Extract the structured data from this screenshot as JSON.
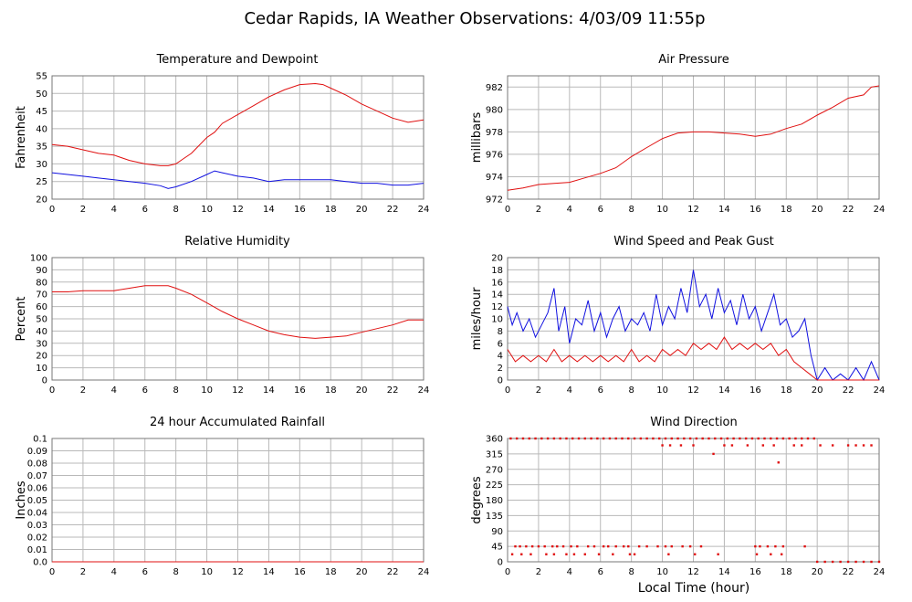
{
  "title": "Cedar Rapids, IA Weather Observations: 4/03/09 11:55p",
  "x_axis_label": "Local Time (hour)",
  "x_ticks": [
    "0",
    "2",
    "4",
    "6",
    "8",
    "10",
    "12",
    "14",
    "16",
    "18",
    "20",
    "22",
    "24"
  ],
  "colors": {
    "red": "#e01010",
    "blue": "#1010e0",
    "grid": "#b9b9b9"
  },
  "chart_data": [
    {
      "type": "line",
      "title": "Temperature and Dewpoint",
      "ylabel": "Fahrenheit",
      "xlim": [
        0,
        24
      ],
      "ylim": [
        20,
        55
      ],
      "yticks": [
        "20",
        "25",
        "30",
        "35",
        "40",
        "45",
        "50",
        "55"
      ],
      "grid": true,
      "series": [
        {
          "color": "#e01010",
          "x": [
            0,
            1,
            2,
            3,
            4,
            5,
            6,
            7,
            7.5,
            8,
            8.5,
            9,
            10,
            10.5,
            11,
            12,
            13,
            14,
            15,
            16,
            17,
            17.5,
            18,
            19,
            20,
            21,
            22,
            23,
            24
          ],
          "y": [
            35.5,
            35,
            34,
            33,
            32.5,
            31,
            30,
            29.5,
            29.5,
            30,
            31.5,
            33,
            37.5,
            39,
            41.5,
            44,
            46.5,
            49,
            51,
            52.5,
            52.8,
            52.5,
            51.5,
            49.5,
            47,
            45,
            43,
            41.8,
            42.5
          ]
        },
        {
          "color": "#1010e0",
          "x": [
            0,
            1,
            2,
            3,
            4,
            5,
            6,
            7,
            7.5,
            8,
            9,
            10,
            10.5,
            11,
            12,
            13,
            14,
            15,
            16,
            17,
            18,
            19,
            20,
            21,
            22,
            23,
            24
          ],
          "y": [
            27.5,
            27,
            26.5,
            26,
            25.5,
            25,
            24.5,
            23.8,
            23,
            23.5,
            25,
            27,
            28,
            27.5,
            26.5,
            26,
            25,
            25.5,
            25.5,
            25.5,
            25.5,
            25,
            24.5,
            24.5,
            24,
            24,
            24.5
          ]
        }
      ]
    },
    {
      "type": "line",
      "title": "Air Pressure",
      "ylabel": "millibars",
      "xlim": [
        0,
        24
      ],
      "ylim": [
        972,
        983
      ],
      "yticks": [
        "972",
        "974",
        "976",
        "978",
        "980",
        "982"
      ],
      "grid": true,
      "series": [
        {
          "color": "#e01010",
          "x": [
            0,
            1,
            2,
            3,
            4,
            5,
            6,
            7,
            8,
            9,
            10,
            11,
            12,
            13,
            14,
            15,
            16,
            17,
            18,
            19,
            20,
            21,
            22,
            23,
            23.5,
            24
          ],
          "y": [
            972.8,
            973,
            973.3,
            973.4,
            973.5,
            973.9,
            974.3,
            974.8,
            975.8,
            976.6,
            977.4,
            977.9,
            978,
            978,
            977.9,
            977.8,
            977.6,
            977.8,
            978.3,
            978.7,
            979.5,
            980.2,
            981,
            981.3,
            982,
            982.1
          ]
        }
      ]
    },
    {
      "type": "line",
      "title": "Relative Humidity",
      "ylabel": "Percent",
      "xlim": [
        0,
        24
      ],
      "ylim": [
        0,
        100
      ],
      "yticks": [
        "0",
        "10",
        "20",
        "30",
        "40",
        "50",
        "60",
        "70",
        "80",
        "90",
        "100"
      ],
      "grid": true,
      "series": [
        {
          "color": "#e01010",
          "x": [
            0,
            1,
            2,
            3,
            4,
            5,
            6,
            7,
            7.5,
            8,
            9,
            10,
            11,
            12,
            13,
            14,
            15,
            16,
            17,
            18,
            19,
            20,
            21,
            22,
            23,
            24
          ],
          "y": [
            72,
            72,
            73,
            73,
            73,
            75,
            77,
            77,
            77,
            75,
            70,
            63,
            56,
            50,
            45,
            40,
            37,
            35,
            34,
            35,
            36,
            39,
            42,
            45,
            49,
            49
          ]
        }
      ]
    },
    {
      "type": "line",
      "title": "Wind Speed and Peak Gust",
      "ylabel": "miles/hour",
      "xlim": [
        0,
        24
      ],
      "ylim": [
        0,
        20
      ],
      "yticks": [
        "0",
        "2",
        "4",
        "6",
        "8",
        "10",
        "12",
        "14",
        "16",
        "18",
        "20"
      ],
      "grid": true,
      "series": [
        {
          "color": "#1010e0",
          "x": [
            0,
            0.3,
            0.6,
            1,
            1.4,
            1.8,
            2.2,
            2.6,
            3,
            3.3,
            3.7,
            4,
            4.4,
            4.8,
            5.2,
            5.6,
            6,
            6.4,
            6.8,
            7.2,
            7.6,
            8,
            8.4,
            8.8,
            9.2,
            9.6,
            10,
            10.4,
            10.8,
            11.2,
            11.6,
            12,
            12.4,
            12.8,
            13.2,
            13.6,
            14,
            14.4,
            14.8,
            15.2,
            15.6,
            16,
            16.4,
            16.8,
            17.2,
            17.6,
            18,
            18.4,
            18.8,
            19.2,
            19.6,
            20,
            20.5,
            21,
            21.5,
            22,
            22.5,
            23,
            23.5,
            24
          ],
          "y": [
            12,
            9,
            11,
            8,
            10,
            7,
            9,
            11,
            15,
            8,
            12,
            6,
            10,
            9,
            13,
            8,
            11,
            7,
            10,
            12,
            8,
            10,
            9,
            11,
            8,
            14,
            9,
            12,
            10,
            15,
            11,
            18,
            12,
            14,
            10,
            15,
            11,
            13,
            9,
            14,
            10,
            12,
            8,
            11,
            14,
            9,
            10,
            7,
            8,
            10,
            4,
            0,
            2,
            0,
            1,
            0,
            2,
            0,
            3,
            0
          ]
        },
        {
          "color": "#e01010",
          "x": [
            0,
            0.5,
            1,
            1.5,
            2,
            2.5,
            3,
            3.5,
            4,
            4.5,
            5,
            5.5,
            6,
            6.5,
            7,
            7.5,
            8,
            8.5,
            9,
            9.5,
            10,
            10.5,
            11,
            11.5,
            12,
            12.5,
            13,
            13.5,
            14,
            14.5,
            15,
            15.5,
            16,
            16.5,
            17,
            17.5,
            18,
            18.5,
            19,
            19.5,
            20,
            20.5,
            21,
            22,
            23,
            24
          ],
          "y": [
            5,
            3,
            4,
            3,
            4,
            3,
            5,
            3,
            4,
            3,
            4,
            3,
            4,
            3,
            4,
            3,
            5,
            3,
            4,
            3,
            5,
            4,
            5,
            4,
            6,
            5,
            6,
            5,
            7,
            5,
            6,
            5,
            6,
            5,
            6,
            4,
            5,
            3,
            2,
            1,
            0,
            0,
            0,
            0,
            0,
            0
          ]
        }
      ]
    },
    {
      "type": "line",
      "title": "24 hour Accumulated Rainfall",
      "ylabel": "Inches",
      "xlim": [
        0,
        24
      ],
      "ylim": [
        0,
        0.1
      ],
      "yticks": [
        "0.0",
        "0.01",
        "0.02",
        "0.03",
        "0.04",
        "0.05",
        "0.06",
        "0.07",
        "0.08",
        "0.09",
        "0.1"
      ],
      "grid": true,
      "series": [
        {
          "color": "#e01010",
          "x": [
            0,
            24
          ],
          "y": [
            0,
            0
          ]
        }
      ]
    },
    {
      "type": "scatter",
      "title": "Wind Direction",
      "ylabel": "degrees",
      "xlabel": "Local Time (hour)",
      "xlim": [
        0,
        24
      ],
      "ylim": [
        0,
        360
      ],
      "yticks": [
        "0",
        "45",
        "90",
        "135",
        "180",
        "225",
        "270",
        "315",
        "360"
      ],
      "grid": true,
      "series": [
        {
          "color": "#e01010",
          "x": [
            0.2,
            0.6,
            1.0,
            1.4,
            1.8,
            2.2,
            2.6,
            3.0,
            3.4,
            3.8,
            4.2,
            4.6,
            5.0,
            5.4,
            5.8,
            6.2,
            6.6,
            7.0,
            7.4,
            7.8,
            8.2,
            8.6,
            9.0,
            9.4,
            9.8,
            10.2,
            10.6,
            11.0,
            11.4,
            11.8,
            12.2,
            12.6,
            13.0,
            13.4,
            13.8,
            14.2,
            14.6,
            15.0,
            15.4,
            15.8,
            16.2,
            16.6,
            17.0,
            17.4,
            17.8,
            18.2,
            18.6,
            19.0,
            19.4,
            19.8,
            10.0,
            10.5,
            11.2,
            12.0,
            13.3,
            14.0,
            14.5,
            15.5,
            16.5,
            17.2,
            18.5,
            19.0,
            20.2,
            21.0,
            22.0,
            22.5,
            23.0,
            23.5,
            17.5,
            0.5,
            0.8,
            1.2,
            1.6,
            2.0,
            2.4,
            2.9,
            3.2,
            3.6,
            4.1,
            4.5,
            5.2,
            5.6,
            6.2,
            6.5,
            7.0,
            7.5,
            7.8,
            8.5,
            9.0,
            9.7,
            10.2,
            10.6,
            11.3,
            11.8,
            12.5,
            16.0,
            16.3,
            16.8,
            17.3,
            17.8,
            19.2,
            0.3,
            0.9,
            1.5,
            2.5,
            3.0,
            3.8,
            4.3,
            5.0,
            5.9,
            6.8,
            7.9,
            8.2,
            10.4,
            12.1,
            13.6,
            16.1,
            17.0,
            17.7,
            20.0,
            20.5,
            21.0,
            21.5,
            22.0,
            22.5,
            23.0,
            23.5,
            24.0
          ],
          "y": [
            360,
            360,
            360,
            360,
            360,
            360,
            360,
            360,
            360,
            360,
            360,
            360,
            360,
            360,
            360,
            360,
            360,
            360,
            360,
            360,
            360,
            360,
            360,
            360,
            360,
            360,
            360,
            360,
            360,
            360,
            360,
            360,
            360,
            360,
            360,
            360,
            360,
            360,
            360,
            360,
            360,
            360,
            360,
            360,
            360,
            360,
            360,
            360,
            360,
            360,
            340,
            340,
            340,
            340,
            315,
            340,
            340,
            340,
            340,
            340,
            340,
            340,
            340,
            340,
            340,
            340,
            340,
            340,
            290,
            45,
            45,
            45,
            45,
            45,
            45,
            45,
            45,
            45,
            45,
            45,
            45,
            45,
            45,
            45,
            45,
            45,
            45,
            45,
            45,
            45,
            45,
            45,
            45,
            45,
            45,
            45,
            45,
            45,
            45,
            45,
            45,
            22,
            22,
            22,
            22,
            22,
            22,
            22,
            22,
            22,
            22,
            22,
            22,
            22,
            22,
            22,
            22,
            22,
            22,
            0,
            0,
            0,
            0,
            0,
            0,
            0,
            0,
            0
          ]
        }
      ]
    }
  ]
}
